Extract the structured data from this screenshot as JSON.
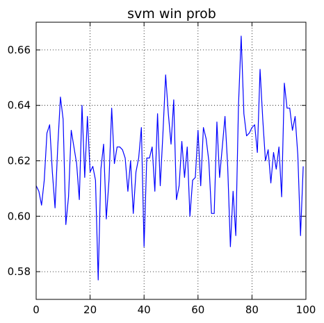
{
  "chart_data": {
    "type": "line",
    "title": "svm win prob",
    "xlabel": "",
    "ylabel": "",
    "xlim": [
      0,
      100
    ],
    "ylim": [
      0.57,
      0.67
    ],
    "grid": true,
    "x_ticks": [
      0,
      20,
      40,
      60,
      80,
      100
    ],
    "x_tick_labels": [
      "0",
      "20",
      "40",
      "60",
      "80",
      "100"
    ],
    "y_ticks": [
      0.58,
      0.6,
      0.62,
      0.64,
      0.66
    ],
    "y_tick_labels": [
      "0.58",
      "0.60",
      "0.62",
      "0.64",
      "0.66"
    ],
    "series": [
      {
        "color": "#0000ff",
        "x": [
          0,
          1,
          2,
          3,
          4,
          5,
          6,
          7,
          8,
          9,
          10,
          11,
          12,
          13,
          14,
          15,
          16,
          17,
          18,
          19,
          20,
          21,
          22,
          23,
          24,
          25,
          26,
          27,
          28,
          29,
          30,
          31,
          32,
          33,
          34,
          35,
          36,
          37,
          38,
          39,
          40,
          41,
          42,
          43,
          44,
          45,
          46,
          47,
          48,
          49,
          50,
          51,
          52,
          53,
          54,
          55,
          56,
          57,
          58,
          59,
          60,
          61,
          62,
          63,
          64,
          65,
          66,
          67,
          68,
          69,
          70,
          71,
          72,
          73,
          74,
          75,
          76,
          77,
          78,
          79,
          80,
          81,
          82,
          83,
          84,
          85,
          86,
          87,
          88,
          89,
          90,
          91,
          92,
          93,
          94,
          95,
          96,
          97,
          98,
          99
        ],
        "values": [
          0.611,
          0.609,
          0.604,
          0.613,
          0.63,
          0.633,
          0.616,
          0.603,
          0.625,
          0.643,
          0.635,
          0.597,
          0.607,
          0.631,
          0.625,
          0.619,
          0.606,
          0.64,
          0.614,
          0.636,
          0.616,
          0.618,
          0.613,
          0.577,
          0.617,
          0.626,
          0.599,
          0.613,
          0.639,
          0.619,
          0.625,
          0.625,
          0.624,
          0.621,
          0.609,
          0.62,
          0.601,
          0.616,
          0.621,
          0.632,
          0.589,
          0.621,
          0.621,
          0.625,
          0.609,
          0.637,
          0.611,
          0.63,
          0.651,
          0.637,
          0.626,
          0.642,
          0.606,
          0.611,
          0.627,
          0.614,
          0.625,
          0.6,
          0.613,
          0.614,
          0.631,
          0.611,
          0.632,
          0.628,
          0.62,
          0.601,
          0.601,
          0.634,
          0.614,
          0.625,
          0.636,
          0.618,
          0.589,
          0.609,
          0.593,
          0.64,
          0.665,
          0.637,
          0.629,
          0.63,
          0.632,
          0.633,
          0.623,
          0.653,
          0.635,
          0.62,
          0.624,
          0.612,
          0.623,
          0.617,
          0.625,
          0.607,
          0.648,
          0.639,
          0.639,
          0.631,
          0.636,
          0.622,
          0.593,
          0.618
        ]
      }
    ]
  }
}
